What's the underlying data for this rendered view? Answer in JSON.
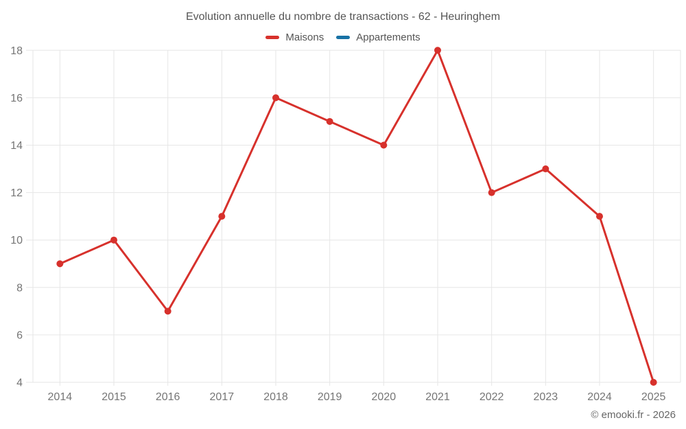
{
  "chart": {
    "title": "Evolution annuelle du nombre de transactions - 62 - Heuringhem",
    "copyright": "© emooki.fr - 2026"
  },
  "colors": {
    "maisons": "#d7312c",
    "appartements": "#1872a5",
    "grid": "#e6e6e6",
    "axis_text": "#757575",
    "title_text": "#555555",
    "copyright_text": "#666666"
  },
  "chart_data": {
    "type": "line",
    "title": "Evolution annuelle du nombre de transactions - 62 - Heuringhem",
    "categories": [
      "2014",
      "2015",
      "2016",
      "2017",
      "2018",
      "2019",
      "2020",
      "2021",
      "2022",
      "2023",
      "2024",
      "2025"
    ],
    "series": [
      {
        "name": "Maisons",
        "color": "#d7312c",
        "values": [
          9,
          10,
          7,
          11,
          16,
          15,
          14,
          18,
          12,
          13,
          11,
          4
        ]
      },
      {
        "name": "Appartements",
        "color": "#1872a5",
        "values": []
      }
    ],
    "xlabel": "",
    "ylabel": "",
    "ylim": [
      4,
      18
    ],
    "yticks": [
      4,
      6,
      8,
      10,
      12,
      14,
      16,
      18
    ],
    "grid": true,
    "legend_position": "top"
  }
}
